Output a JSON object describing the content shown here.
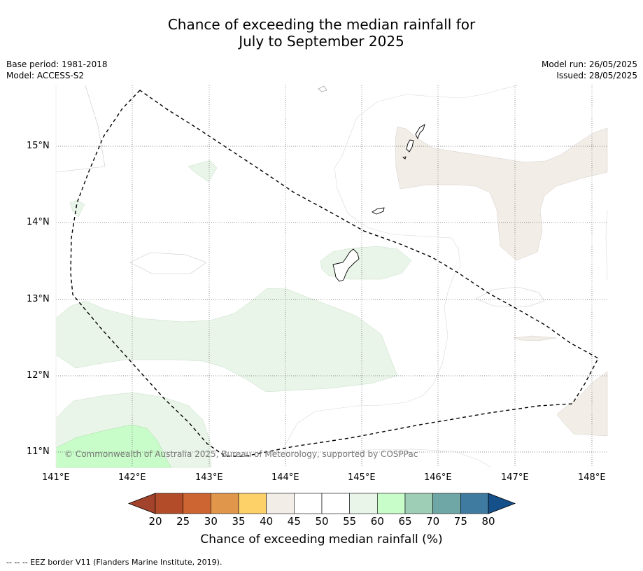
{
  "title": {
    "line1": "Chance of exceeding the median rainfall for",
    "line2": "July to September 2025"
  },
  "meta_left": {
    "base_period": "Base period: 1981-2018",
    "model": "Model: ACCESS-S2"
  },
  "meta_right": {
    "model_run": "Model run: 26/05/2025",
    "issued": "Issued: 28/05/2025"
  },
  "map": {
    "lon_labels": [
      "141°E",
      "142°E",
      "143°E",
      "144°E",
      "145°E",
      "146°E",
      "147°E",
      "148°E"
    ],
    "lat_labels": [
      "15°N",
      "14°N",
      "13°N",
      "12°N",
      "11°N"
    ],
    "copyright": "© Commonwealth of Australia 2025, Bureau of Meteorology, supported by COSPPac",
    "colors": {
      "land_outline": "#000000",
      "eez_border": "#000000",
      "gridline": "#666666"
    }
  },
  "colorbar": {
    "labels": [
      "20",
      "25",
      "30",
      "35",
      "40",
      "45",
      "50",
      "55",
      "60",
      "65",
      "70",
      "75",
      "80"
    ],
    "colors": [
      "#a3432b",
      "#b34c28",
      "#cd6532",
      "#e0974b",
      "#fdd168",
      "#f2ede7",
      "#ffffff",
      "#ffffff",
      "#e9f5e9",
      "#c8fcc8",
      "#9ecfb6",
      "#6fa7a7",
      "#3f7ba0",
      "#16508a"
    ],
    "title": "Chance of exceeding median rainfall (%)"
  },
  "footnote": "--  --  -- EEZ border V11 (Flanders Marine Institute, 2019)."
}
